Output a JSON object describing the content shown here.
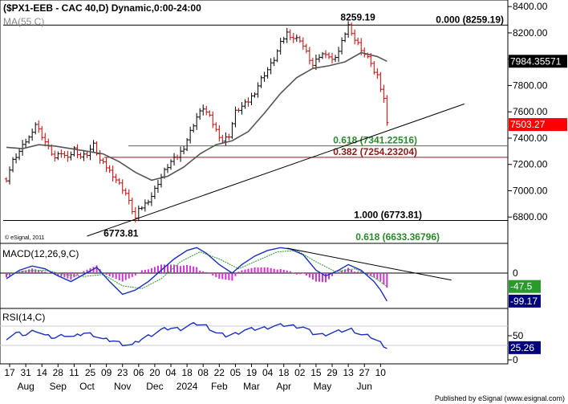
{
  "chart_data": [
    {
      "panel": "price",
      "type": "ohlc",
      "title": "($PX1-EEB - CAC 40,D) Dynamic,0:00-24:00",
      "overlay_label": "MA(55,C)",
      "copyright": "© eSignal, 2011",
      "ylim": [
        6600,
        8450
      ],
      "yticks": [
        {
          "value": 6800,
          "label": "6800.00"
        },
        {
          "value": 7000,
          "label": "7000.00"
        },
        {
          "value": 7200,
          "label": "7200.00"
        },
        {
          "value": 7400,
          "label": "7400.00"
        },
        {
          "value": 7600,
          "label": "7600.00"
        },
        {
          "value": 7800,
          "label": "7800.00"
        },
        {
          "value": 8000,
          "label": "8000.00"
        },
        {
          "value": 8200,
          "label": "8200.00"
        },
        {
          "value": 8400,
          "label": "8400.00"
        }
      ],
      "close_series": [
        {
          "x": 0,
          "y": 7090
        },
        {
          "x": 2,
          "y": 7230
        },
        {
          "x": 4,
          "y": 7300
        },
        {
          "x": 6,
          "y": 7380
        },
        {
          "x": 8,
          "y": 7430
        },
        {
          "x": 9,
          "y": 7510
        },
        {
          "x": 11,
          "y": 7420
        },
        {
          "x": 13,
          "y": 7330
        },
        {
          "x": 15,
          "y": 7250
        },
        {
          "x": 17,
          "y": 7290
        },
        {
          "x": 19,
          "y": 7240
        },
        {
          "x": 21,
          "y": 7320
        },
        {
          "x": 23,
          "y": 7260
        },
        {
          "x": 25,
          "y": 7280
        },
        {
          "x": 27,
          "y": 7350
        },
        {
          "x": 29,
          "y": 7230
        },
        {
          "x": 31,
          "y": 7180
        },
        {
          "x": 33,
          "y": 7120
        },
        {
          "x": 35,
          "y": 7050
        },
        {
          "x": 37,
          "y": 6980
        },
        {
          "x": 39,
          "y": 6850
        },
        {
          "x": 40,
          "y": 6790
        },
        {
          "x": 41,
          "y": 6850
        },
        {
          "x": 43,
          "y": 6900
        },
        {
          "x": 45,
          "y": 6960
        },
        {
          "x": 47,
          "y": 7060
        },
        {
          "x": 49,
          "y": 7150
        },
        {
          "x": 51,
          "y": 7220
        },
        {
          "x": 53,
          "y": 7260
        },
        {
          "x": 55,
          "y": 7330
        },
        {
          "x": 57,
          "y": 7450
        },
        {
          "x": 59,
          "y": 7560
        },
        {
          "x": 61,
          "y": 7630
        },
        {
          "x": 63,
          "y": 7560
        },
        {
          "x": 65,
          "y": 7460
        },
        {
          "x": 67,
          "y": 7380
        },
        {
          "x": 69,
          "y": 7420
        },
        {
          "x": 71,
          "y": 7600
        },
        {
          "x": 73,
          "y": 7640
        },
        {
          "x": 75,
          "y": 7680
        },
        {
          "x": 77,
          "y": 7750
        },
        {
          "x": 79,
          "y": 7850
        },
        {
          "x": 81,
          "y": 7920
        },
        {
          "x": 83,
          "y": 8000
        },
        {
          "x": 85,
          "y": 8120
        },
        {
          "x": 87,
          "y": 8200
        },
        {
          "x": 89,
          "y": 8160
        },
        {
          "x": 91,
          "y": 8150
        },
        {
          "x": 93,
          "y": 8050
        },
        {
          "x": 95,
          "y": 7950
        },
        {
          "x": 97,
          "y": 8020
        },
        {
          "x": 99,
          "y": 8050
        },
        {
          "x": 101,
          "y": 7990
        },
        {
          "x": 103,
          "y": 8060
        },
        {
          "x": 105,
          "y": 8200
        },
        {
          "x": 106,
          "y": 8259
        },
        {
          "x": 107,
          "y": 8180
        },
        {
          "x": 109,
          "y": 8120
        },
        {
          "x": 111,
          "y": 8040
        },
        {
          "x": 113,
          "y": 7980
        },
        {
          "x": 114,
          "y": 7900
        },
        {
          "x": 115,
          "y": 7870
        },
        {
          "x": 116,
          "y": 7780
        },
        {
          "x": 117,
          "y": 7700
        },
        {
          "x": 118,
          "y": 7503
        }
      ],
      "ma55": [
        {
          "x": 0,
          "y": 7330
        },
        {
          "x": 5,
          "y": 7320
        },
        {
          "x": 10,
          "y": 7350
        },
        {
          "x": 15,
          "y": 7340
        },
        {
          "x": 20,
          "y": 7320
        },
        {
          "x": 25,
          "y": 7300
        },
        {
          "x": 30,
          "y": 7280
        },
        {
          "x": 35,
          "y": 7220
        },
        {
          "x": 40,
          "y": 7140
        },
        {
          "x": 45,
          "y": 7080
        },
        {
          "x": 50,
          "y": 7110
        },
        {
          "x": 55,
          "y": 7180
        },
        {
          "x": 60,
          "y": 7280
        },
        {
          "x": 65,
          "y": 7350
        },
        {
          "x": 70,
          "y": 7380
        },
        {
          "x": 75,
          "y": 7450
        },
        {
          "x": 80,
          "y": 7590
        },
        {
          "x": 85,
          "y": 7740
        },
        {
          "x": 90,
          "y": 7860
        },
        {
          "x": 95,
          "y": 7930
        },
        {
          "x": 100,
          "y": 7950
        },
        {
          "x": 105,
          "y": 7980
        },
        {
          "x": 110,
          "y": 8050
        },
        {
          "x": 115,
          "y": 8020
        },
        {
          "x": 118,
          "y": 7984
        }
      ],
      "trendline": {
        "x1": 25,
        "y1": 6655,
        "x2": 142,
        "y2": 7660
      },
      "levels": [
        {
          "value": 8259.19,
          "label": "0.000 (8259.19)",
          "color": "#000000"
        },
        {
          "value": 7341.22516,
          "label": "0.618 (7341.22516)",
          "color": "#2a8a2a"
        },
        {
          "value": 7254.23204,
          "label": "0.382 (7254.23204)",
          "color": "#8b1a1a"
        },
        {
          "value": 6773.81,
          "label": "1.000 (6773.81)",
          "color": "#000000"
        }
      ],
      "projection_label": {
        "value": 6633.36796,
        "label": "0.618 (6633.36796)",
        "color": "#2a8a2a"
      },
      "annotations": [
        {
          "text": "8259.19",
          "x": 106,
          "y": 8259.19
        },
        {
          "text": "6773.81",
          "x": 40,
          "y": 6773.81
        }
      ],
      "markers": [
        {
          "label": "7984.35571",
          "value": 7984.35571,
          "bg": "#000000",
          "fg": "#ffffff"
        },
        {
          "label": "7503.27",
          "value": 7503.27,
          "bg": "#ff0000",
          "fg": "#ffffff"
        }
      ]
    },
    {
      "panel": "macd",
      "type": "line",
      "title": "MACD(12,26,9,C)",
      "ylim": [
        -125,
        105
      ],
      "zero_label": "0",
      "macd": [
        {
          "x": 0,
          "y": -20
        },
        {
          "x": 4,
          "y": 10
        },
        {
          "x": 8,
          "y": 25
        },
        {
          "x": 12,
          "y": 15
        },
        {
          "x": 16,
          "y": -10
        },
        {
          "x": 20,
          "y": -30
        },
        {
          "x": 24,
          "y": -5
        },
        {
          "x": 28,
          "y": 20
        },
        {
          "x": 32,
          "y": -30
        },
        {
          "x": 36,
          "y": -75
        },
        {
          "x": 40,
          "y": -60
        },
        {
          "x": 44,
          "y": -30
        },
        {
          "x": 48,
          "y": 10
        },
        {
          "x": 52,
          "y": 50
        },
        {
          "x": 56,
          "y": 80
        },
        {
          "x": 59,
          "y": 90
        },
        {
          "x": 62,
          "y": 70
        },
        {
          "x": 66,
          "y": 30
        },
        {
          "x": 70,
          "y": 0
        },
        {
          "x": 73,
          "y": 30
        },
        {
          "x": 77,
          "y": 60
        },
        {
          "x": 81,
          "y": 80
        },
        {
          "x": 85,
          "y": 90
        },
        {
          "x": 88,
          "y": 85
        },
        {
          "x": 92,
          "y": 65
        },
        {
          "x": 96,
          "y": 10
        },
        {
          "x": 99,
          "y": -10
        },
        {
          "x": 103,
          "y": 10
        },
        {
          "x": 106,
          "y": 30
        },
        {
          "x": 110,
          "y": 10
        },
        {
          "x": 114,
          "y": -30
        },
        {
          "x": 116,
          "y": -60
        },
        {
          "x": 118,
          "y": -99.17
        }
      ],
      "signal": [
        {
          "x": 0,
          "y": -5
        },
        {
          "x": 6,
          "y": 8
        },
        {
          "x": 12,
          "y": 10
        },
        {
          "x": 18,
          "y": -5
        },
        {
          "x": 24,
          "y": -12
        },
        {
          "x": 30,
          "y": -5
        },
        {
          "x": 36,
          "y": -45
        },
        {
          "x": 42,
          "y": -55
        },
        {
          "x": 48,
          "y": -20
        },
        {
          "x": 54,
          "y": 40
        },
        {
          "x": 60,
          "y": 75
        },
        {
          "x": 66,
          "y": 50
        },
        {
          "x": 72,
          "y": 15
        },
        {
          "x": 78,
          "y": 45
        },
        {
          "x": 84,
          "y": 75
        },
        {
          "x": 90,
          "y": 80
        },
        {
          "x": 96,
          "y": 40
        },
        {
          "x": 102,
          "y": 5
        },
        {
          "x": 108,
          "y": 15
        },
        {
          "x": 114,
          "y": -15
        },
        {
          "x": 118,
          "y": -47.5
        }
      ],
      "trendline": {
        "x1": 87,
        "y1": 88,
        "x2": 138,
        "y2": -25
      },
      "markers": [
        {
          "label": "-47.5",
          "value": -47.5,
          "bg": "#2a9a2a",
          "fg": "#ffffff"
        },
        {
          "label": "-99.17",
          "value": -99.17,
          "bg": "#00007a",
          "fg": "#ffffff"
        }
      ]
    },
    {
      "panel": "rsi",
      "type": "line",
      "title": "RSI(14,C)",
      "ylim": [
        0,
        100
      ],
      "yticks": [
        {
          "value": 0,
          "label": "0"
        },
        {
          "value": 50,
          "label": "50"
        }
      ],
      "series": [
        {
          "x": 0,
          "y": 45
        },
        {
          "x": 3,
          "y": 55
        },
        {
          "x": 6,
          "y": 52
        },
        {
          "x": 9,
          "y": 62
        },
        {
          "x": 12,
          "y": 50
        },
        {
          "x": 15,
          "y": 46
        },
        {
          "x": 18,
          "y": 52
        },
        {
          "x": 21,
          "y": 47
        },
        {
          "x": 24,
          "y": 56
        },
        {
          "x": 27,
          "y": 52
        },
        {
          "x": 30,
          "y": 42
        },
        {
          "x": 33,
          "y": 40
        },
        {
          "x": 36,
          "y": 33
        },
        {
          "x": 39,
          "y": 30
        },
        {
          "x": 42,
          "y": 44
        },
        {
          "x": 45,
          "y": 52
        },
        {
          "x": 48,
          "y": 62
        },
        {
          "x": 51,
          "y": 66
        },
        {
          "x": 54,
          "y": 64
        },
        {
          "x": 57,
          "y": 72
        },
        {
          "x": 59,
          "y": 75
        },
        {
          "x": 62,
          "y": 70
        },
        {
          "x": 65,
          "y": 56
        },
        {
          "x": 68,
          "y": 50
        },
        {
          "x": 71,
          "y": 54
        },
        {
          "x": 74,
          "y": 62
        },
        {
          "x": 77,
          "y": 64
        },
        {
          "x": 80,
          "y": 66
        },
        {
          "x": 83,
          "y": 70
        },
        {
          "x": 86,
          "y": 72
        },
        {
          "x": 89,
          "y": 70
        },
        {
          "x": 92,
          "y": 68
        },
        {
          "x": 95,
          "y": 55
        },
        {
          "x": 98,
          "y": 52
        },
        {
          "x": 101,
          "y": 56
        },
        {
          "x": 104,
          "y": 60
        },
        {
          "x": 107,
          "y": 63
        },
        {
          "x": 110,
          "y": 52
        },
        {
          "x": 113,
          "y": 48
        },
        {
          "x": 116,
          "y": 35
        },
        {
          "x": 118,
          "y": 25.26
        }
      ],
      "markers": [
        {
          "label": "25.26",
          "value": 25.26,
          "bg": "#00007a",
          "fg": "#ffffff"
        }
      ]
    }
  ],
  "x_axis": {
    "day_ticks": [
      {
        "x": 1,
        "label": "17"
      },
      {
        "x": 6,
        "label": "31"
      },
      {
        "x": 11,
        "label": "14"
      },
      {
        "x": 16,
        "label": "28"
      },
      {
        "x": 21,
        "label": "11"
      },
      {
        "x": 26,
        "label": "25"
      },
      {
        "x": 31,
        "label": "09"
      },
      {
        "x": 36,
        "label": "23"
      },
      {
        "x": 41,
        "label": "06"
      },
      {
        "x": 46,
        "label": "20"
      },
      {
        "x": 51,
        "label": "04"
      },
      {
        "x": 56,
        "label": "18"
      },
      {
        "x": 61,
        "label": "08"
      },
      {
        "x": 66,
        "label": "22"
      },
      {
        "x": 71,
        "label": "05"
      },
      {
        "x": 76,
        "label": "19"
      },
      {
        "x": 81,
        "label": "04"
      },
      {
        "x": 86,
        "label": "18"
      },
      {
        "x": 91,
        "label": "02"
      },
      {
        "x": 96,
        "label": "15"
      },
      {
        "x": 101,
        "label": "29"
      },
      {
        "x": 106,
        "label": "13"
      },
      {
        "x": 111,
        "label": "27"
      },
      {
        "x": 116,
        "label": "10"
      }
    ],
    "period_labels": [
      {
        "x": 6,
        "label": "Aug"
      },
      {
        "x": 16,
        "label": "Sep"
      },
      {
        "x": 25,
        "label": "Oct"
      },
      {
        "x": 36,
        "label": "Nov"
      },
      {
        "x": 46,
        "label": "Dec"
      },
      {
        "x": 56,
        "label": "2024"
      },
      {
        "x": 66,
        "label": "Feb"
      },
      {
        "x": 76,
        "label": "Mar"
      },
      {
        "x": 86,
        "label": "Apr"
      },
      {
        "x": 98,
        "label": "May"
      },
      {
        "x": 111,
        "label": "Jun"
      }
    ]
  },
  "footer": "Published by eSignal (www.esignal.com)",
  "colors": {
    "price_bar_up": "#000000",
    "price_bar_down": "#cc0000",
    "ma": "#555555",
    "trendline": "#000000",
    "macd_line": "#1a2fbf",
    "signal_line": "#2a9a2a",
    "histogram": "#cc33cc",
    "rsi_line": "#1a2fbf",
    "panel_border": "#000000",
    "grid": "#cccccc"
  }
}
